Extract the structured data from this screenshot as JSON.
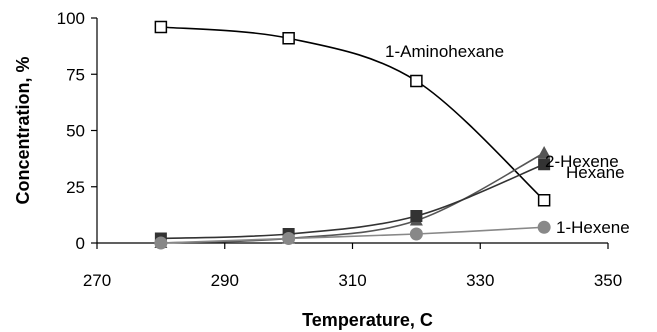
{
  "chart_data": {
    "type": "scatter",
    "xlabel": "Temperature, C",
    "ylabel": "Concentration, %",
    "xlim": [
      270,
      350
    ],
    "ylim": [
      0,
      100
    ],
    "xticks": [
      "270",
      "290",
      "310",
      "330",
      "350"
    ],
    "yticks": [
      "0",
      "25",
      "50",
      "75",
      "100"
    ],
    "grid": false,
    "legend": "none (series labeled directly on chart)",
    "series": [
      {
        "name": "1-Aminohexane",
        "x": [
          280,
          300,
          320,
          340
        ],
        "y": [
          96,
          91,
          72,
          19
        ],
        "marker": "open-square",
        "line": "smooth-fit",
        "color": "#000000"
      },
      {
        "name": "2-Hexene",
        "x": [
          280,
          300,
          320,
          340
        ],
        "y": [
          0,
          2,
          10,
          40
        ],
        "marker": "filled-triangle",
        "line": "smooth-fit",
        "color": "#555555"
      },
      {
        "name": "Hexane",
        "x": [
          280,
          300,
          320,
          340
        ],
        "y": [
          2,
          4,
          12,
          35
        ],
        "marker": "filled-square",
        "line": "smooth-fit",
        "color": "#333333"
      },
      {
        "name": "1-Hexene",
        "x": [
          280,
          300,
          320,
          340
        ],
        "y": [
          0,
          2,
          4,
          7
        ],
        "marker": "filled-circle",
        "line": "smooth-fit",
        "color": "#888888"
      }
    ]
  }
}
